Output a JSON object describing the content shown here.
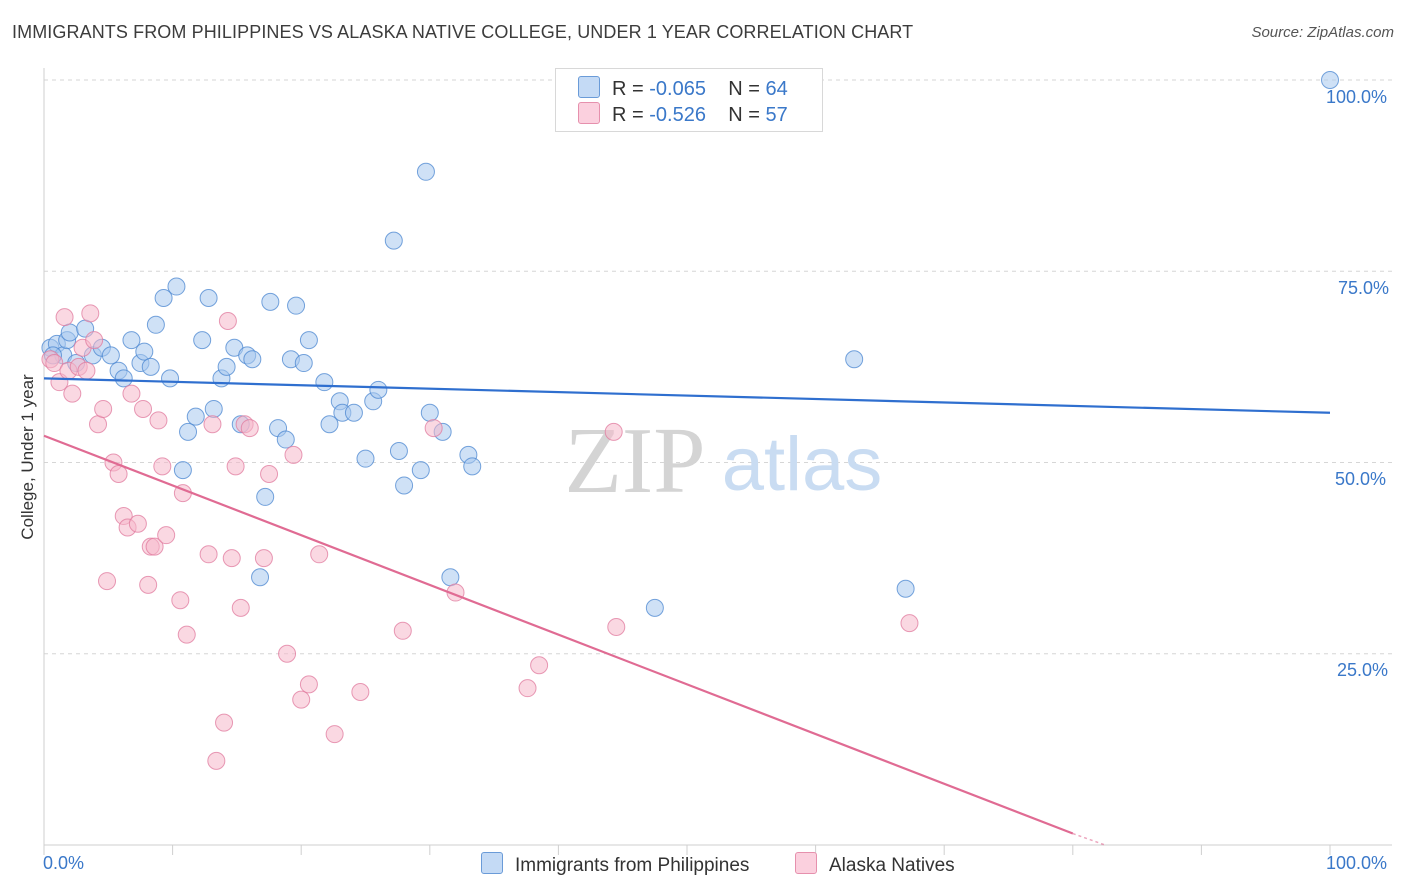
{
  "header": {
    "title": "IMMIGRANTS FROM PHILIPPINES VS ALASKA NATIVE COLLEGE, UNDER 1 YEAR CORRELATION CHART",
    "source": "Source: ZipAtlas.com"
  },
  "watermark": {
    "zip": "ZIP",
    "atlas": "atlas"
  },
  "legend": {
    "rows": [
      {
        "r_label": "R =",
        "r_value": "-0.065",
        "n_label": "N =",
        "n_value": "64",
        "color": "#a8c8ef"
      },
      {
        "r_label": "R =",
        "r_value": "-0.526",
        "n_label": "N =",
        "n_value": "57",
        "color": "#f5b8cb"
      }
    ]
  },
  "bottom_legend": {
    "items": [
      {
        "label": "Immigrants from Philippines",
        "color": "#a8c8ef"
      },
      {
        "label": "Alaska Natives",
        "color": "#f5b8cb"
      }
    ]
  },
  "axis_labels": {
    "x_min": "0.0%",
    "x_max": "100.0%",
    "y_ticks": [
      "100.0%",
      "75.0%",
      "50.0%",
      "25.0%"
    ]
  },
  "chart_data": {
    "type": "scatter",
    "title": "IMMIGRANTS FROM PHILIPPINES VS ALASKA NATIVE COLLEGE, UNDER 1 YEAR CORRELATION CHART",
    "xlabel": "",
    "ylabel": "College, Under 1 year",
    "xlim": [
      0,
      100
    ],
    "ylim": [
      0,
      100
    ],
    "grid": true,
    "series": [
      {
        "name": "Immigrants from Philippines",
        "color": "#4a86d0",
        "fill": "#a8c8ef",
        "trend": {
          "x": [
            0,
            100
          ],
          "y": [
            61.0,
            56.5
          ],
          "color": "#2f6fcf"
        },
        "points": [
          [
            0.5,
            65
          ],
          [
            1.0,
            65.5
          ],
          [
            1.5,
            64
          ],
          [
            1.8,
            66
          ],
          [
            2.0,
            67
          ],
          [
            2.5,
            63
          ],
          [
            3.2,
            67.5
          ],
          [
            3.8,
            64
          ],
          [
            4.5,
            65
          ],
          [
            5.2,
            64
          ],
          [
            5.8,
            62
          ],
          [
            6.2,
            61
          ],
          [
            6.8,
            66
          ],
          [
            7.5,
            63
          ],
          [
            7.8,
            64.5
          ],
          [
            8.3,
            62.5
          ],
          [
            8.7,
            68
          ],
          [
            9.3,
            71.5
          ],
          [
            9.8,
            61
          ],
          [
            10.3,
            73
          ],
          [
            10.8,
            49
          ],
          [
            11.2,
            54
          ],
          [
            11.8,
            56
          ],
          [
            12.3,
            66
          ],
          [
            12.8,
            71.5
          ],
          [
            13.2,
            57
          ],
          [
            13.8,
            61
          ],
          [
            14.2,
            62.5
          ],
          [
            14.8,
            65
          ],
          [
            15.3,
            55
          ],
          [
            15.8,
            64
          ],
          [
            16.2,
            63.5
          ],
          [
            16.8,
            35
          ],
          [
            17.2,
            45.5
          ],
          [
            17.6,
            71
          ],
          [
            18.2,
            54.5
          ],
          [
            18.8,
            53
          ],
          [
            19.2,
            63.5
          ],
          [
            19.6,
            70.5
          ],
          [
            20.2,
            63
          ],
          [
            20.6,
            66
          ],
          [
            21.8,
            60.5
          ],
          [
            22.2,
            55
          ],
          [
            23.0,
            58
          ],
          [
            23.2,
            56.5
          ],
          [
            24.1,
            56.5
          ],
          [
            25.0,
            50.5
          ],
          [
            25.6,
            58
          ],
          [
            26.0,
            59.5
          ],
          [
            27.2,
            79
          ],
          [
            27.6,
            51.5
          ],
          [
            28.0,
            47
          ],
          [
            29.3,
            49
          ],
          [
            29.7,
            88
          ],
          [
            30.0,
            56.5
          ],
          [
            31.0,
            54
          ],
          [
            31.6,
            35
          ],
          [
            33.0,
            51
          ],
          [
            33.3,
            49.5
          ],
          [
            47.5,
            31
          ],
          [
            63.0,
            63.5
          ],
          [
            67.0,
            33.5
          ],
          [
            100,
            100
          ],
          [
            0.7,
            64
          ]
        ]
      },
      {
        "name": "Alaska Natives",
        "color": "#e07a9e",
        "fill": "#f5b8cb",
        "trend": {
          "x": [
            0,
            80
          ],
          "y": [
            53.5,
            1.5
          ],
          "dash_x": [
            80,
            82.5
          ],
          "dash_y": [
            1.5,
            0
          ],
          "color": "#e06b93"
        },
        "points": [
          [
            0.5,
            63.5
          ],
          [
            0.8,
            63
          ],
          [
            1.2,
            60.5
          ],
          [
            1.6,
            69
          ],
          [
            1.9,
            62
          ],
          [
            2.2,
            59
          ],
          [
            2.7,
            62.5
          ],
          [
            3.0,
            65
          ],
          [
            3.3,
            62
          ],
          [
            3.6,
            69.5
          ],
          [
            3.9,
            66
          ],
          [
            4.2,
            55
          ],
          [
            4.6,
            57
          ],
          [
            4.9,
            34.5
          ],
          [
            5.4,
            50
          ],
          [
            5.8,
            48.5
          ],
          [
            6.2,
            43
          ],
          [
            6.5,
            41.5
          ],
          [
            6.8,
            59
          ],
          [
            7.3,
            42
          ],
          [
            7.7,
            57
          ],
          [
            8.1,
            34
          ],
          [
            8.3,
            39
          ],
          [
            8.6,
            39
          ],
          [
            8.9,
            55.5
          ],
          [
            9.2,
            49.5
          ],
          [
            9.5,
            40.5
          ],
          [
            10.6,
            32
          ],
          [
            10.8,
            46
          ],
          [
            11.1,
            27.5
          ],
          [
            12.8,
            38
          ],
          [
            13.1,
            55
          ],
          [
            13.4,
            11
          ],
          [
            14.0,
            16
          ],
          [
            14.3,
            68.5
          ],
          [
            14.6,
            37.5
          ],
          [
            14.9,
            49.5
          ],
          [
            15.3,
            31
          ],
          [
            15.6,
            55
          ],
          [
            16.0,
            54.5
          ],
          [
            17.1,
            37.5
          ],
          [
            17.5,
            48.5
          ],
          [
            18.9,
            25
          ],
          [
            19.4,
            51
          ],
          [
            20.0,
            19
          ],
          [
            20.6,
            21
          ],
          [
            21.4,
            38
          ],
          [
            22.6,
            14.5
          ],
          [
            24.6,
            20
          ],
          [
            27.9,
            28
          ],
          [
            30.3,
            54.5
          ],
          [
            32.0,
            33
          ],
          [
            37.6,
            20.5
          ],
          [
            38.5,
            23.5
          ],
          [
            44.3,
            54
          ],
          [
            44.5,
            28.5
          ],
          [
            67.3,
            29
          ]
        ]
      }
    ]
  }
}
